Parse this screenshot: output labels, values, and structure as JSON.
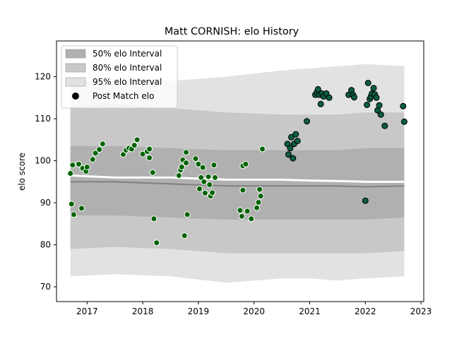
{
  "chart_data": {
    "type": "scatter",
    "title": "Matt CORNISH: elo History",
    "xlabel": "",
    "ylabel": "elo score",
    "xlim": [
      2016.45,
      2023.05
    ],
    "ylim": [
      66.5,
      128.5
    ],
    "x_ticks": [
      2017,
      2018,
      2019,
      2020,
      2021,
      2022,
      2023
    ],
    "x_tick_labels": [
      "2017",
      "2018",
      "2019",
      "2020",
      "2021",
      "2022",
      "2023"
    ],
    "y_ticks": [
      70,
      80,
      90,
      100,
      110,
      120
    ],
    "y_tick_labels": [
      "70",
      "80",
      "90",
      "100",
      "110",
      "120"
    ],
    "grid": false,
    "legend_position": "upper-left",
    "legend": [
      {
        "label": "50% elo Interval",
        "kind": "band",
        "color": "#b0b0b0"
      },
      {
        "label": "80% elo Interval",
        "kind": "band",
        "color": "#c8c8c8"
      },
      {
        "label": "95% elo Interval",
        "kind": "band",
        "color": "#e2e2e2"
      },
      {
        "label": "Post Match elo",
        "kind": "marker",
        "color": "#000000"
      }
    ],
    "bands": {
      "x": [
        2016.7,
        2017.5,
        2018.5,
        2019.5,
        2020.5,
        2021.0,
        2021.5,
        2022.0,
        2022.7
      ],
      "p95_low": [
        72.5,
        73.0,
        72.5,
        71.0,
        72.0,
        72.0,
        71.5,
        72.0,
        72.5
      ],
      "p95_high": [
        118.5,
        119.5,
        119.0,
        120.0,
        121.5,
        122.0,
        122.5,
        123.0,
        122.5
      ],
      "p80_low": [
        79.0,
        79.5,
        79.0,
        78.0,
        78.0,
        78.0,
        78.0,
        78.0,
        78.5
      ],
      "p80_high": [
        113.0,
        113.5,
        112.5,
        111.5,
        111.0,
        111.0,
        111.0,
        111.5,
        111.5
      ],
      "p50_low": [
        87.0,
        87.0,
        86.5,
        86.0,
        86.0,
        86.0,
        86.0,
        86.0,
        86.5
      ],
      "p50_high": [
        103.5,
        103.5,
        103.0,
        102.5,
        102.5,
        102.5,
        102.5,
        103.0,
        103.0
      ],
      "mean": [
        95.0,
        95.0,
        94.5,
        94.0,
        94.0,
        94.0,
        94.0,
        93.8,
        94.0
      ],
      "white_line": [
        96.5,
        96.0,
        96.0,
        95.5,
        95.5,
        95.3,
        95.2,
        95.0,
        95.0
      ]
    },
    "series": [
      {
        "color": "#006400",
        "points": [
          [
            2016.7,
            97.0
          ],
          [
            2016.72,
            89.7
          ],
          [
            2016.74,
            99.0
          ],
          [
            2016.76,
            87.2
          ],
          [
            2016.85,
            99.2
          ],
          [
            2016.9,
            88.7
          ],
          [
            2016.92,
            98.2
          ],
          [
            2016.98,
            97.5
          ],
          [
            2017.0,
            98.5
          ],
          [
            2017.1,
            100.3
          ],
          [
            2017.15,
            101.8
          ],
          [
            2017.22,
            102.7
          ],
          [
            2017.28,
            104.0
          ],
          [
            2017.65,
            101.5
          ],
          [
            2017.7,
            102.5
          ],
          [
            2017.75,
            103.0
          ],
          [
            2017.8,
            102.8
          ],
          [
            2017.85,
            103.7
          ],
          [
            2017.9,
            105.0
          ],
          [
            2018.0,
            101.6
          ],
          [
            2018.08,
            102.2
          ],
          [
            2018.12,
            100.7
          ],
          [
            2018.12,
            102.8
          ],
          [
            2018.18,
            97.2
          ],
          [
            2018.2,
            86.2
          ],
          [
            2018.25,
            80.5
          ],
          [
            2018.65,
            96.5
          ],
          [
            2018.68,
            97.8
          ],
          [
            2018.7,
            98.5
          ],
          [
            2018.72,
            100.2
          ],
          [
            2018.75,
            82.2
          ],
          [
            2018.78,
            99.5
          ],
          [
            2018.78,
            102.0
          ],
          [
            2018.8,
            87.2
          ],
          [
            2018.95,
            100.5
          ],
          [
            2019.0,
            99.2
          ],
          [
            2019.02,
            93.3
          ],
          [
            2019.05,
            96.0
          ],
          [
            2019.08,
            98.4
          ],
          [
            2019.1,
            95.0
          ],
          [
            2019.12,
            92.3
          ],
          [
            2019.18,
            96.2
          ],
          [
            2019.2,
            94.3
          ],
          [
            2019.22,
            91.6
          ],
          [
            2019.25,
            92.4
          ],
          [
            2019.28,
            99.0
          ],
          [
            2019.3,
            96.0
          ],
          [
            2019.75,
            88.2
          ],
          [
            2019.78,
            86.8
          ],
          [
            2019.8,
            93.0
          ],
          [
            2019.8,
            98.8
          ],
          [
            2019.85,
            99.2
          ],
          [
            2019.88,
            88.0
          ],
          [
            2019.95,
            86.2
          ],
          [
            2020.05,
            88.8
          ],
          [
            2020.08,
            90.1
          ],
          [
            2020.1,
            93.2
          ],
          [
            2020.12,
            91.6
          ],
          [
            2020.15,
            102.8
          ]
        ]
      },
      {
        "color": "#0b5d3f",
        "points": [
          [
            2020.6,
            104.0
          ],
          [
            2020.62,
            101.5
          ],
          [
            2020.65,
            103.0
          ],
          [
            2020.67,
            105.6
          ],
          [
            2020.7,
            100.6
          ],
          [
            2020.72,
            104.0
          ],
          [
            2020.75,
            106.3
          ],
          [
            2020.78,
            104.7
          ],
          [
            2020.95,
            109.4
          ],
          [
            2021.1,
            115.7
          ],
          [
            2021.13,
            116.3
          ],
          [
            2021.15,
            117.0
          ],
          [
            2021.17,
            115.7
          ],
          [
            2021.2,
            113.5
          ],
          [
            2021.22,
            116.0
          ],
          [
            2021.25,
            115.3
          ],
          [
            2021.3,
            116.0
          ],
          [
            2021.35,
            115.0
          ],
          [
            2021.7,
            115.7
          ],
          [
            2021.75,
            116.8
          ],
          [
            2021.78,
            115.7
          ],
          [
            2021.8,
            115.1
          ],
          [
            2022.0,
            90.5
          ],
          [
            2022.03,
            113.3
          ],
          [
            2022.05,
            118.5
          ],
          [
            2022.08,
            114.7
          ],
          [
            2022.1,
            115.3
          ],
          [
            2022.12,
            116.0
          ],
          [
            2022.15,
            117.3
          ],
          [
            2022.17,
            115.8
          ],
          [
            2022.2,
            115.0
          ],
          [
            2022.22,
            112.0
          ],
          [
            2022.25,
            113.2
          ],
          [
            2022.28,
            111.0
          ],
          [
            2022.35,
            108.3
          ],
          [
            2022.68,
            113.0
          ],
          [
            2022.7,
            109.3
          ]
        ]
      }
    ]
  }
}
